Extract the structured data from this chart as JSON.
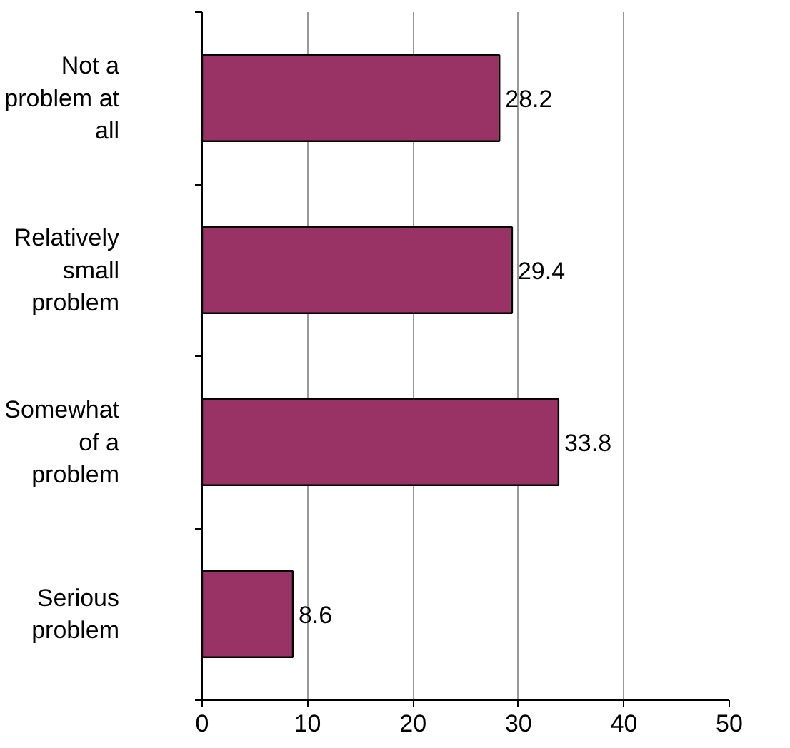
{
  "chart_data": {
    "type": "bar",
    "orientation": "horizontal",
    "categories": [
      "Not a problem at all",
      "Relatively small problem",
      "Somewhat of a problem",
      "Serious problem"
    ],
    "values": [
      28.2,
      29.4,
      33.8,
      8.6
    ],
    "color": "#993366",
    "xlim": [
      0,
      50
    ],
    "xticks": [
      0,
      10,
      20,
      30,
      40,
      50
    ],
    "grid": "x",
    "data_labels": true
  }
}
